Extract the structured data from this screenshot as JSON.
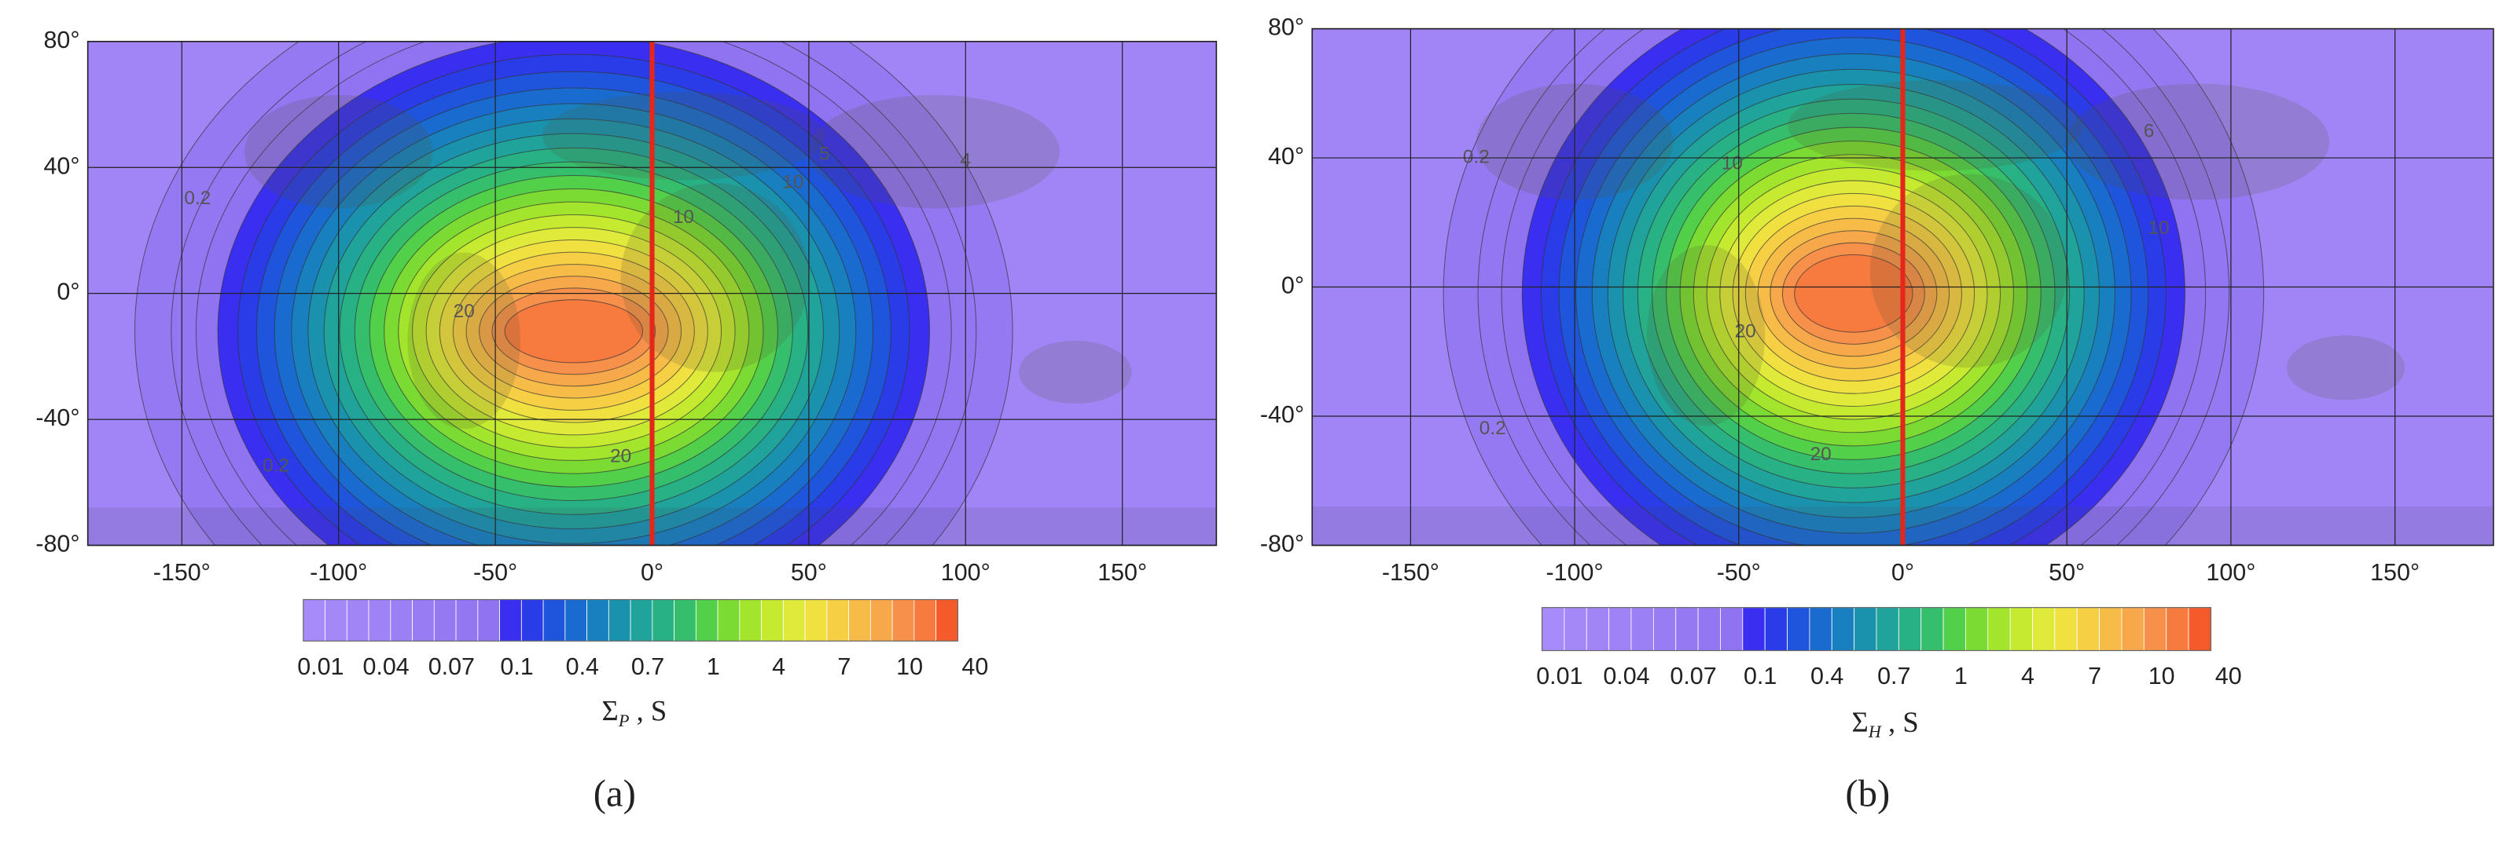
{
  "chart_data": [
    {
      "type": "contour",
      "panel_label": "(a)",
      "xlim": [
        -180,
        180
      ],
      "ylim": [
        -80,
        80
      ],
      "xticks": [
        {
          "value": -150,
          "label": "-150°"
        },
        {
          "value": -100,
          "label": "-100°"
        },
        {
          "value": -50,
          "label": "-50°"
        },
        {
          "value": 0,
          "label": "0°"
        },
        {
          "value": 50,
          "label": "50°"
        },
        {
          "value": 100,
          "label": "100°"
        },
        {
          "value": 150,
          "label": "150°"
        }
      ],
      "yticks": [
        {
          "value": 80,
          "label": "80°"
        },
        {
          "value": 40,
          "label": "40°"
        },
        {
          "value": 0,
          "label": "0°"
        },
        {
          "value": -40,
          "label": "-40°"
        },
        {
          "value": -80,
          "label": "-80°"
        }
      ],
      "grid": true,
      "marker_line": {
        "x": 0,
        "color": "#e5261b"
      },
      "contour_labels": [
        "20",
        "10",
        "20",
        "10",
        "5",
        "4",
        "0.2",
        "0.2"
      ],
      "colorbar": {
        "levels": [
          0.01,
          0.02,
          0.03,
          0.04,
          0.05,
          0.06,
          0.07,
          0.08,
          0.09,
          0.1,
          0.2,
          0.3,
          0.4,
          0.5,
          0.6,
          0.7,
          0.8,
          0.9,
          1,
          2,
          3,
          4,
          5,
          6,
          7,
          8,
          9,
          10,
          20,
          30,
          40
        ],
        "colors": [
          "#a78bfa",
          "#a488f8",
          "#a185f7",
          "#9e82f6",
          "#9b7ff5",
          "#987cf4",
          "#9579f3",
          "#9276f2",
          "#8f73f1",
          "#3a2ff0",
          "#2a3be8",
          "#1f55dc",
          "#1a6bcf",
          "#1880bf",
          "#1a92ae",
          "#1fa39a",
          "#28b184",
          "#35bf6c",
          "#52d04a",
          "#7bdb32",
          "#a3e42c",
          "#c6ea30",
          "#e0ea3a",
          "#f0e040",
          "#f6cf45",
          "#f7bc48",
          "#f6a84a",
          "#f7904a",
          "#f77a3e",
          "#f55a2a"
        ],
        "ticks": [
          0.01,
          0.04,
          0.07,
          0.1,
          0.4,
          0.7,
          1,
          4,
          7,
          10,
          40
        ],
        "label": [
          "Σ",
          "P",
          " , S"
        ]
      }
    },
    {
      "type": "contour",
      "panel_label": "(b)",
      "xlim": [
        -180,
        180
      ],
      "ylim": [
        -80,
        80
      ],
      "xticks": [
        {
          "value": -150,
          "label": "-150°"
        },
        {
          "value": -100,
          "label": "-100°"
        },
        {
          "value": -50,
          "label": "-50°"
        },
        {
          "value": 0,
          "label": "0°"
        },
        {
          "value": 50,
          "label": "50°"
        },
        {
          "value": 100,
          "label": "100°"
        },
        {
          "value": 150,
          "label": "150°"
        }
      ],
      "yticks": [
        {
          "value": 80,
          "label": "80°"
        },
        {
          "value": 40,
          "label": "40°"
        },
        {
          "value": 0,
          "label": "0°"
        },
        {
          "value": -40,
          "label": "-40°"
        },
        {
          "value": -80,
          "label": "-80°"
        }
      ],
      "grid": true,
      "marker_line": {
        "x": 0,
        "color": "#e5261b"
      },
      "contour_labels": [
        "20",
        "10",
        "20",
        "10",
        "6",
        "0.2",
        "0.2"
      ],
      "colorbar": {
        "levels": [
          0.01,
          0.02,
          0.03,
          0.04,
          0.05,
          0.06,
          0.07,
          0.08,
          0.09,
          0.1,
          0.2,
          0.3,
          0.4,
          0.5,
          0.6,
          0.7,
          0.8,
          0.9,
          1,
          2,
          3,
          4,
          5,
          6,
          7,
          8,
          9,
          10,
          20,
          30,
          40
        ],
        "colors": [
          "#a78bfa",
          "#a488f8",
          "#a185f7",
          "#9e82f6",
          "#9b7ff5",
          "#987cf4",
          "#9579f3",
          "#9276f2",
          "#8f73f1",
          "#3a2ff0",
          "#2a3be8",
          "#1f55dc",
          "#1a6bcf",
          "#1880bf",
          "#1a92ae",
          "#1fa39a",
          "#28b184",
          "#35bf6c",
          "#52d04a",
          "#7bdb32",
          "#a3e42c",
          "#c6ea30",
          "#e0ea3a",
          "#f0e040",
          "#f6cf45",
          "#f7bc48",
          "#f6a84a",
          "#f7904a",
          "#f77a3e",
          "#f55a2a"
        ],
        "ticks": [
          0.01,
          0.04,
          0.07,
          0.1,
          0.4,
          0.7,
          1,
          4,
          7,
          10,
          40
        ],
        "label": [
          "Σ",
          "H",
          " , S"
        ]
      }
    }
  ]
}
